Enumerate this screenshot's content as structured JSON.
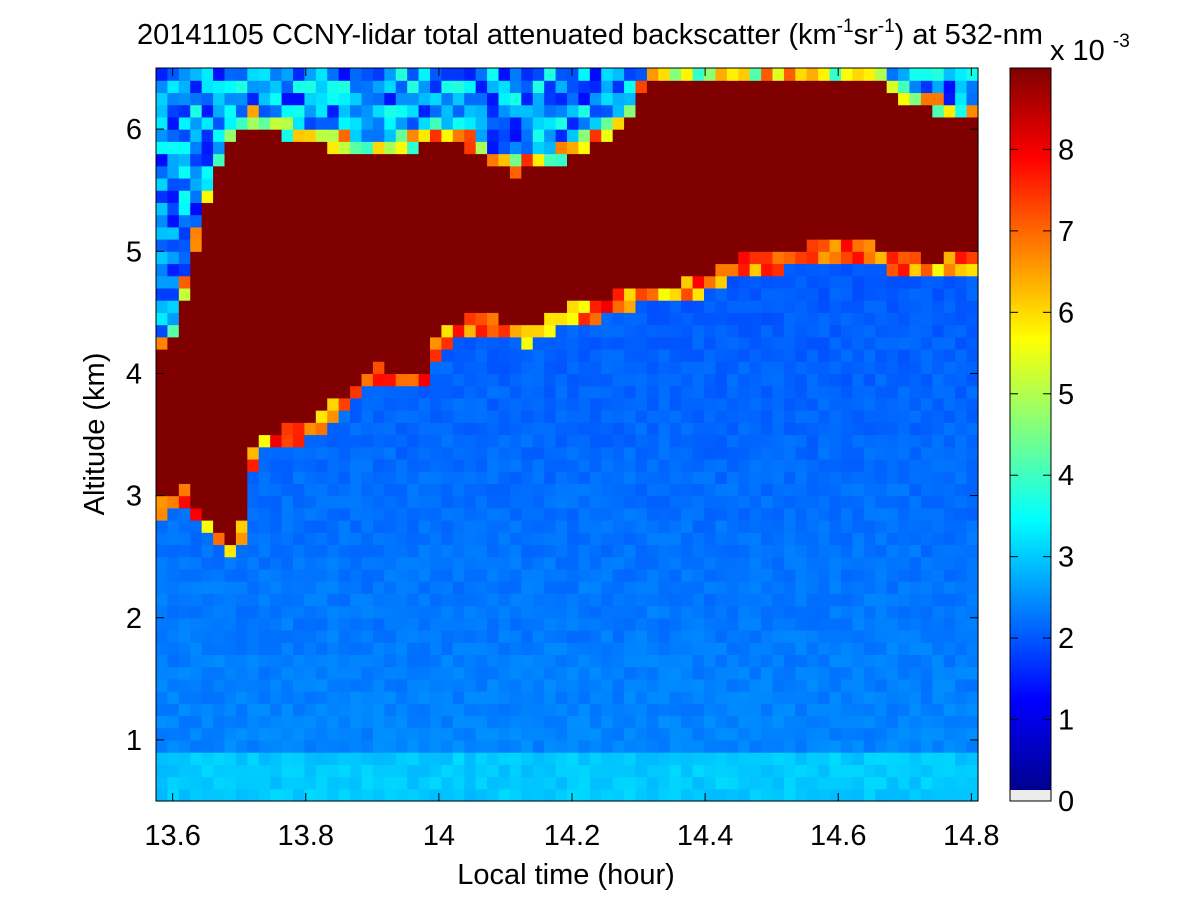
{
  "chart_data": {
    "type": "heatmap",
    "title_parts": [
      "20141105 CCNY-lidar total attenuated backscatter (km",
      "-1",
      "sr",
      "-1",
      ") at 532-nm"
    ],
    "xlabel": "Local time (hour)",
    "ylabel": "Altitude (km)",
    "x_range": [
      13.575,
      14.81
    ],
    "y_range": [
      0.5,
      6.5
    ],
    "x_ticks": [
      13.6,
      13.8,
      14,
      14.2,
      14.4,
      14.6,
      14.8
    ],
    "x_tick_labels": [
      "13.6",
      "13.8",
      "14",
      "14.2",
      "14.4",
      "14.6",
      "14.8"
    ],
    "y_ticks": [
      1,
      2,
      3,
      4,
      5,
      6
    ],
    "y_tick_labels": [
      "1",
      "2",
      "3",
      "4",
      "5",
      "6"
    ],
    "colorbar": {
      "range": [
        0,
        9
      ],
      "ticks": [
        0,
        1,
        2,
        3,
        4,
        5,
        6,
        7,
        8
      ],
      "tick_labels": [
        "0",
        "1",
        "2",
        "3",
        "4",
        "5",
        "6",
        "7",
        "8"
      ],
      "multiplier_base": "x 10",
      "multiplier_exp": "-3",
      "colormap": "jet"
    },
    "cloud_base_km": {
      "x": [
        13.575,
        13.6,
        13.62,
        13.64,
        13.66,
        13.68,
        13.7,
        13.72,
        13.74,
        13.78,
        13.82,
        13.86,
        13.9,
        13.94,
        13.98,
        14.0,
        14.02,
        14.06,
        14.1,
        14.14,
        14.18,
        14.22,
        14.26,
        14.3,
        14.34,
        14.38,
        14.42,
        14.46,
        14.5,
        14.54,
        14.58,
        14.62,
        14.66,
        14.7,
        14.74,
        14.78,
        14.81
      ],
      "y": [
        2.9,
        2.95,
        3.0,
        2.8,
        2.75,
        2.55,
        2.6,
        3.3,
        3.45,
        3.5,
        3.6,
        3.75,
        4.0,
        3.95,
        3.95,
        4.25,
        4.35,
        4.4,
        4.35,
        4.3,
        4.45,
        4.5,
        4.55,
        4.65,
        4.65,
        4.7,
        4.8,
        4.88,
        4.92,
        4.95,
        5.0,
        5.02,
        4.95,
        4.9,
        4.85,
        4.9,
        4.92
      ]
    },
    "cloud_top_km": {
      "x": [
        13.575,
        13.6,
        13.64,
        13.68,
        13.72,
        13.76,
        13.8,
        13.84,
        13.88,
        13.92,
        13.96,
        14.0,
        14.04,
        14.08,
        14.12,
        14.16,
        14.2,
        14.24,
        14.28,
        14.32,
        14.4,
        14.5,
        14.6,
        14.66,
        14.7,
        14.74,
        14.78,
        14.81
      ],
      "y": [
        4.2,
        4.3,
        5.2,
        5.9,
        6.1,
        6.0,
        5.95,
        5.9,
        5.85,
        5.85,
        5.9,
        6.0,
        5.9,
        5.75,
        5.7,
        5.75,
        5.85,
        5.95,
        6.1,
        6.5,
        6.5,
        6.5,
        6.5,
        6.45,
        6.3,
        6.2,
        6.15,
        6.1
      ]
    },
    "boundary_layer_value": 2.3,
    "near_surface_value": 2.9,
    "free_troposphere_value": 2.0,
    "cloud_value": 9.0,
    "high_clear_value": 1.2
  }
}
